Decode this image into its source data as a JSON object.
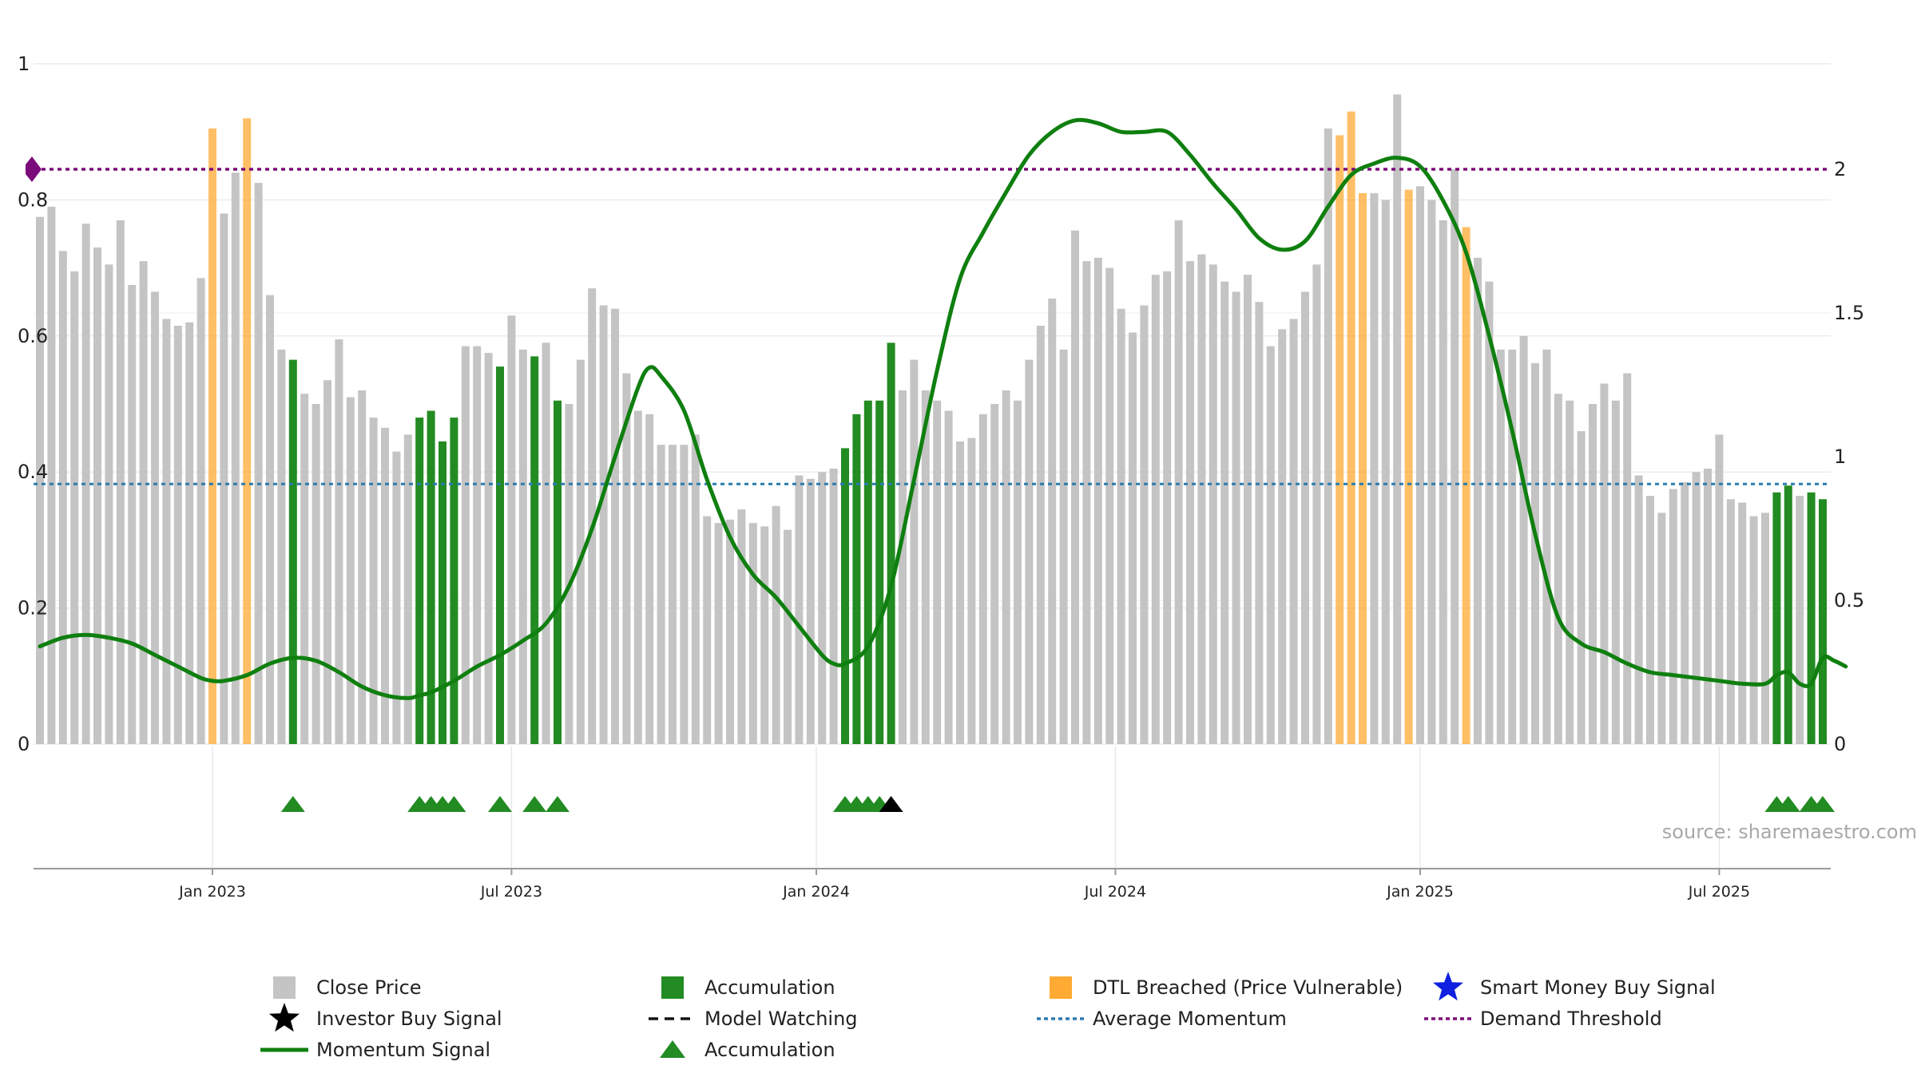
{
  "chart_data": {
    "type": "bar",
    "title": "",
    "xlabel": "",
    "ylabel": "",
    "ylim_left": [
      0,
      1
    ],
    "ylim_right": [
      0,
      2.2
    ],
    "left_ticks": [
      "0",
      "0.2",
      "0.4",
      "0.6",
      "0.8",
      "1"
    ],
    "right_ticks": [
      "0",
      "0.5",
      "1",
      "1.5",
      "2"
    ],
    "x_ticks": [
      {
        "label": "Jan 2023",
        "week": 15
      },
      {
        "label": "Jul 2023",
        "week": 41
      },
      {
        "label": "Jan 2024",
        "week": 67.5
      },
      {
        "label": "Jul 2024",
        "week": 93.5
      },
      {
        "label": "Jan 2025",
        "week": 120
      },
      {
        "label": "Jul 2025",
        "week": 146
      }
    ],
    "bar_series_name": "Close Price",
    "bars": [
      0.775,
      0.79,
      0.725,
      0.695,
      0.765,
      0.73,
      0.705,
      0.77,
      0.675,
      0.71,
      0.665,
      0.625,
      0.615,
      0.62,
      0.685,
      0.905,
      0.78,
      0.84,
      0.92,
      0.825,
      0.66,
      0.58,
      0.565,
      0.515,
      0.5,
      0.535,
      0.595,
      0.51,
      0.52,
      0.48,
      0.465,
      0.43,
      0.455,
      0.48,
      0.49,
      0.445,
      0.48,
      0.585,
      0.585,
      0.575,
      0.555,
      0.63,
      0.58,
      0.57,
      0.59,
      0.505,
      0.5,
      0.565,
      0.67,
      0.645,
      0.64,
      0.545,
      0.49,
      0.485,
      0.44,
      0.44,
      0.44,
      0.455,
      0.335,
      0.325,
      0.33,
      0.345,
      0.325,
      0.32,
      0.35,
      0.315,
      0.395,
      0.39,
      0.4,
      0.405,
      0.435,
      0.485,
      0.505,
      0.505,
      0.59,
      0.52,
      0.565,
      0.52,
      0.505,
      0.49,
      0.445,
      0.45,
      0.485,
      0.5,
      0.52,
      0.505,
      0.565,
      0.615,
      0.655,
      0.58,
      0.755,
      0.71,
      0.715,
      0.7,
      0.64,
      0.605,
      0.645,
      0.69,
      0.695,
      0.77,
      0.71,
      0.72,
      0.705,
      0.68,
      0.665,
      0.69,
      0.65,
      0.585,
      0.61,
      0.625,
      0.665,
      0.705,
      0.905,
      0.895,
      0.93,
      0.81,
      0.81,
      0.8,
      0.955,
      0.815,
      0.82,
      0.8,
      0.77,
      0.845,
      0.76,
      0.715,
      0.68,
      0.58,
      0.58,
      0.6,
      0.56,
      0.58,
      0.515,
      0.505,
      0.46,
      0.5,
      0.53,
      0.505,
      0.545,
      0.395,
      0.365,
      0.34,
      0.375,
      0.385,
      0.4,
      0.405,
      0.455,
      0.36,
      0.355,
      0.335,
      0.34,
      0.37,
      0.38,
      0.365,
      0.37,
      0.36
    ],
    "accumulation_weeks": [
      22,
      33,
      34,
      35,
      36,
      40,
      43,
      45,
      70,
      71,
      72,
      73,
      74,
      151,
      152,
      154,
      155
    ],
    "dtl_weeks": [
      15,
      18,
      113,
      114,
      115,
      119,
      124
    ],
    "series": [
      {
        "name": "Momentum Signal",
        "weeks": [
          0,
          2,
          4,
          6,
          8,
          10,
          12,
          14,
          15,
          16,
          18,
          20,
          22,
          24,
          26,
          28,
          30,
          32,
          33,
          34,
          36,
          38,
          40,
          42,
          44,
          46,
          48,
          50,
          52,
          53,
          54,
          56,
          58,
          60,
          62,
          64,
          66,
          68,
          69,
          70,
          72,
          74,
          76,
          78,
          80,
          82,
          84,
          86,
          88,
          90,
          92,
          94,
          96,
          98,
          100,
          102,
          104,
          106,
          108,
          110,
          112,
          114,
          116,
          118,
          120,
          122,
          124,
          126,
          128,
          130,
          132,
          134,
          136,
          138,
          140,
          142,
          144,
          146,
          148,
          150,
          151,
          152,
          153,
          154,
          155,
          156,
          157
        ],
        "values": [
          0.34,
          0.37,
          0.38,
          0.37,
          0.35,
          0.31,
          0.27,
          0.23,
          0.22,
          0.22,
          0.24,
          0.28,
          0.3,
          0.29,
          0.25,
          0.2,
          0.17,
          0.16,
          0.17,
          0.18,
          0.22,
          0.27,
          0.31,
          0.36,
          0.42,
          0.55,
          0.75,
          1.0,
          1.24,
          1.31,
          1.28,
          1.16,
          0.92,
          0.72,
          0.59,
          0.51,
          0.41,
          0.31,
          0.28,
          0.28,
          0.34,
          0.55,
          0.92,
          1.3,
          1.62,
          1.78,
          1.92,
          2.05,
          2.13,
          2.17,
          2.16,
          2.13,
          2.13,
          2.13,
          2.05,
          1.95,
          1.86,
          1.76,
          1.72,
          1.75,
          1.87,
          1.98,
          2.02,
          2.04,
          2.01,
          1.89,
          1.71,
          1.42,
          1.09,
          0.73,
          0.44,
          0.35,
          0.32,
          0.28,
          0.25,
          0.24,
          0.23,
          0.22,
          0.21,
          0.21,
          0.24,
          0.25,
          0.21,
          0.21,
          0.3,
          0.29,
          0.27
        ]
      }
    ],
    "average_momentum": 0.905,
    "demand_threshold": 2.0,
    "markers": {
      "accumulation_weeks": [
        22,
        33,
        34,
        35,
        36,
        40,
        43,
        45,
        70,
        71,
        72,
        73,
        151,
        152,
        154,
        155
      ],
      "investor_buy_weeks": [
        74
      ]
    },
    "annotation": "source: sharemaestro.com",
    "legend_position": "bottom",
    "grid": true,
    "colors": {
      "close_price": "#c4c4c4",
      "accumulation": "#228b22",
      "dtl": "#ffaa33",
      "momentum": "#0f7f0f",
      "average_momentum": "#2b7bb0",
      "demand_threshold": "#7b0b7b",
      "investor_buy": "#000000",
      "smart_money": "#1020e0",
      "source": "#a8a8a8"
    }
  },
  "legend": [
    {
      "label": "Close Price",
      "icon": "gray-square-icon"
    },
    {
      "label": "Accumulation",
      "icon": "green-square-icon"
    },
    {
      "label": "DTL Breached (Price Vulnerable)",
      "icon": "orange-square-icon"
    },
    {
      "label": "Smart Money Buy Signal",
      "icon": "blue-star-icon"
    },
    {
      "label": "Investor Buy Signal",
      "icon": "black-star-icon"
    },
    {
      "label": "Model Watching",
      "icon": "black-dashed-line-icon"
    },
    {
      "label": "Average Momentum",
      "icon": "blue-dotted-line-icon"
    },
    {
      "label": "Demand Threshold",
      "icon": "purple-dotted-line-icon"
    },
    {
      "label": "Momentum Signal",
      "icon": "green-line-icon"
    },
    {
      "label": "Accumulation",
      "icon": "green-triangle-icon"
    }
  ]
}
